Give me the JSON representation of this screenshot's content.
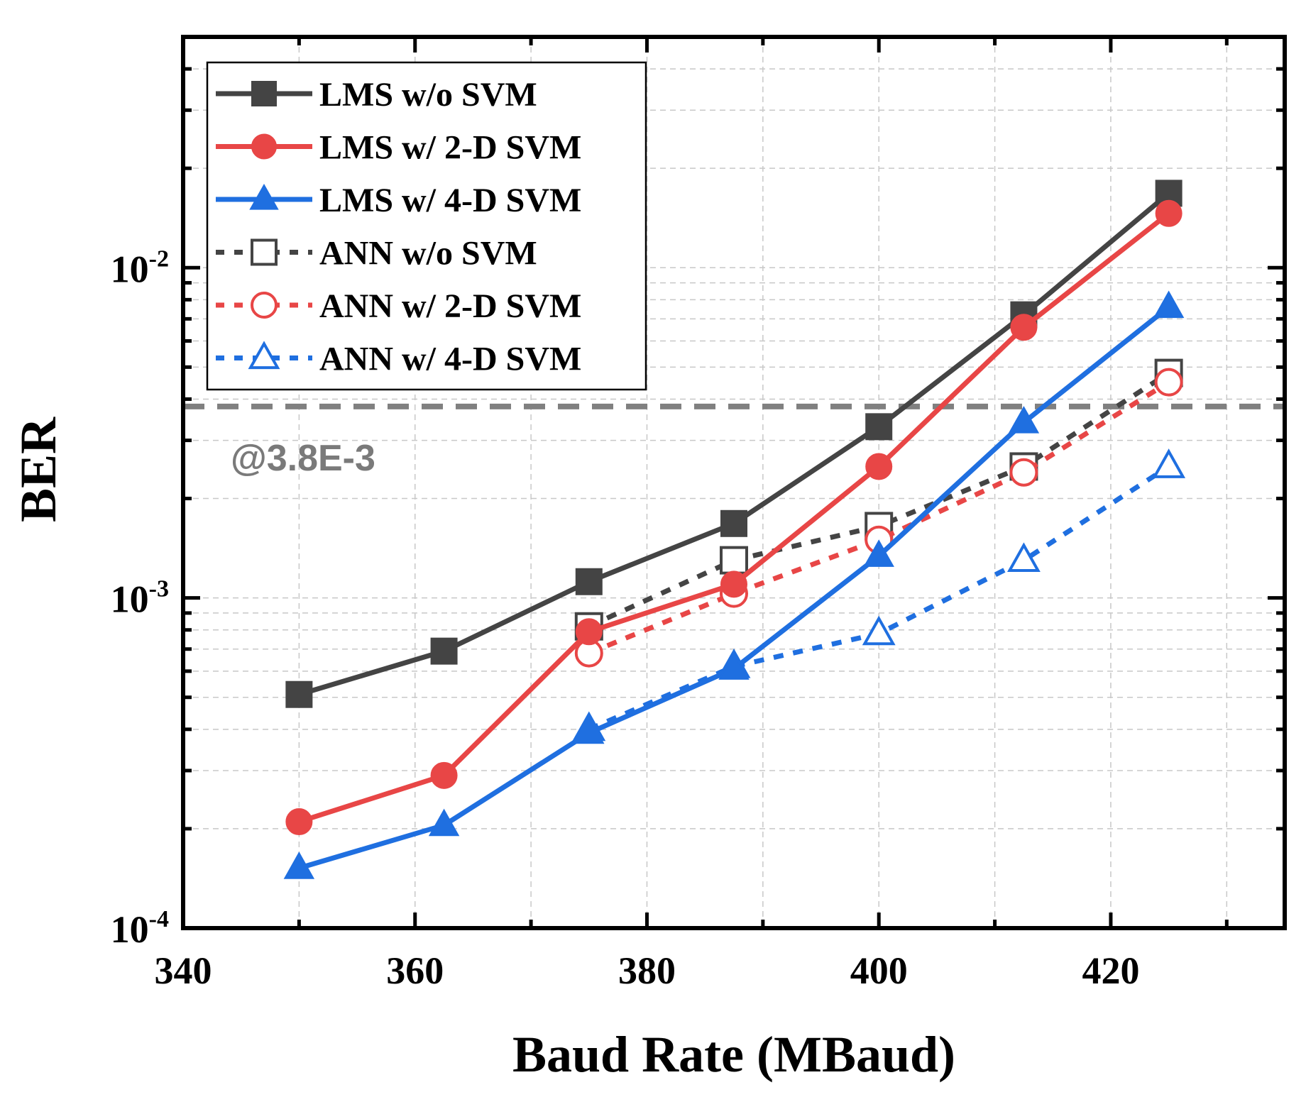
{
  "chart_data": {
    "type": "line",
    "xlabel": "Baud Rate (MBaud)",
    "ylabel": "BER",
    "xlim": [
      340,
      435
    ],
    "ylim": [
      0.0001,
      0.05
    ],
    "yscale": "log",
    "grid": true,
    "legend_position": "top-left",
    "x_ticks": [
      340,
      360,
      380,
      400,
      420
    ],
    "y_ticks": [
      {
        "value": 0.0001,
        "base": "10",
        "exp": "-4"
      },
      {
        "value": 0.001,
        "base": "10",
        "exp": "-3"
      },
      {
        "value": 0.01,
        "base": "10",
        "exp": "-2"
      }
    ],
    "threshold": {
      "value": 0.0038,
      "label": "@3.8E-3",
      "color": "#808080"
    },
    "series": [
      {
        "name": "LMS w/o SVM",
        "color": "#444444",
        "marker": "square",
        "filled": true,
        "dashed": false,
        "x": [
          350,
          362.5,
          375,
          387.5,
          400,
          412.5,
          425
        ],
        "y": [
          0.00051,
          0.00069,
          0.00112,
          0.00168,
          0.0033,
          0.0072,
          0.0168
        ]
      },
      {
        "name": "LMS w/ 2-D SVM",
        "color": "#e84646",
        "marker": "circle",
        "filled": true,
        "dashed": false,
        "x": [
          350,
          362.5,
          375,
          387.5,
          400,
          412.5,
          425
        ],
        "y": [
          0.00021,
          0.00029,
          0.00079,
          0.0011,
          0.0025,
          0.0066,
          0.0146
        ]
      },
      {
        "name": "LMS w/ 4-D SVM",
        "color": "#1f6fe0",
        "marker": "triangle",
        "filled": true,
        "dashed": false,
        "x": [
          350,
          362.5,
          375,
          387.5,
          400,
          412.5,
          425
        ],
        "y": [
          0.000152,
          0.000205,
          0.00039,
          0.00061,
          0.00134,
          0.0034,
          0.0076
        ]
      },
      {
        "name": "ANN w/o SVM",
        "color": "#444444",
        "marker": "square",
        "filled": false,
        "dashed": true,
        "x": [
          375,
          387.5,
          400,
          412.5,
          425
        ],
        "y": [
          0.00082,
          0.0013,
          0.00165,
          0.0025,
          0.0048
        ]
      },
      {
        "name": "ANN w/ 2-D SVM",
        "color": "#e84646",
        "marker": "circle",
        "filled": false,
        "dashed": true,
        "x": [
          375,
          387.5,
          400,
          412.5,
          425
        ],
        "y": [
          0.00068,
          0.00103,
          0.0015,
          0.0024,
          0.0045
        ]
      },
      {
        "name": "ANN w/ 4-D SVM",
        "color": "#1f6fe0",
        "marker": "triangle",
        "filled": false,
        "dashed": true,
        "x": [
          375,
          387.5,
          400,
          412.5,
          425
        ],
        "y": [
          0.0004,
          0.00062,
          0.00078,
          0.0013,
          0.0025
        ]
      }
    ]
  }
}
